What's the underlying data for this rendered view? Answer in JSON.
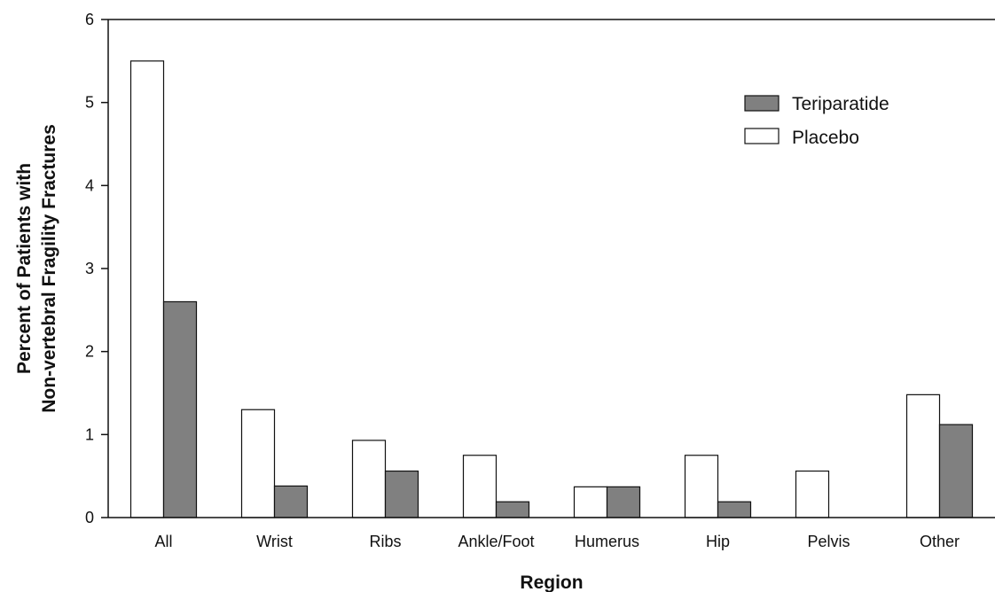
{
  "chart_data": {
    "type": "bar",
    "categories": [
      "All",
      "Wrist",
      "Ribs",
      "Ankle/Foot",
      "Humerus",
      "Hip",
      "Pelvis",
      "Other"
    ],
    "series": [
      {
        "name": "Placebo",
        "color": "#ffffff",
        "values": [
          5.5,
          1.3,
          0.93,
          0.75,
          0.37,
          0.75,
          0.56,
          1.48
        ]
      },
      {
        "name": "Teriparatide",
        "color": "#808080",
        "values": [
          2.6,
          0.38,
          0.56,
          0.19,
          0.37,
          0.19,
          0,
          1.12
        ]
      }
    ],
    "xlabel": "Region",
    "ylabel_lines": [
      "Percent of Patients with",
      "Non-vertebral Fragility Fractures"
    ],
    "ylim": [
      0,
      6
    ],
    "yticks": [
      "0",
      "1",
      "2",
      "3",
      "4",
      "5",
      "6"
    ],
    "legend": {
      "placement": "top-right",
      "entries": [
        "Teriparatide",
        "Placebo"
      ]
    },
    "grid": false
  }
}
